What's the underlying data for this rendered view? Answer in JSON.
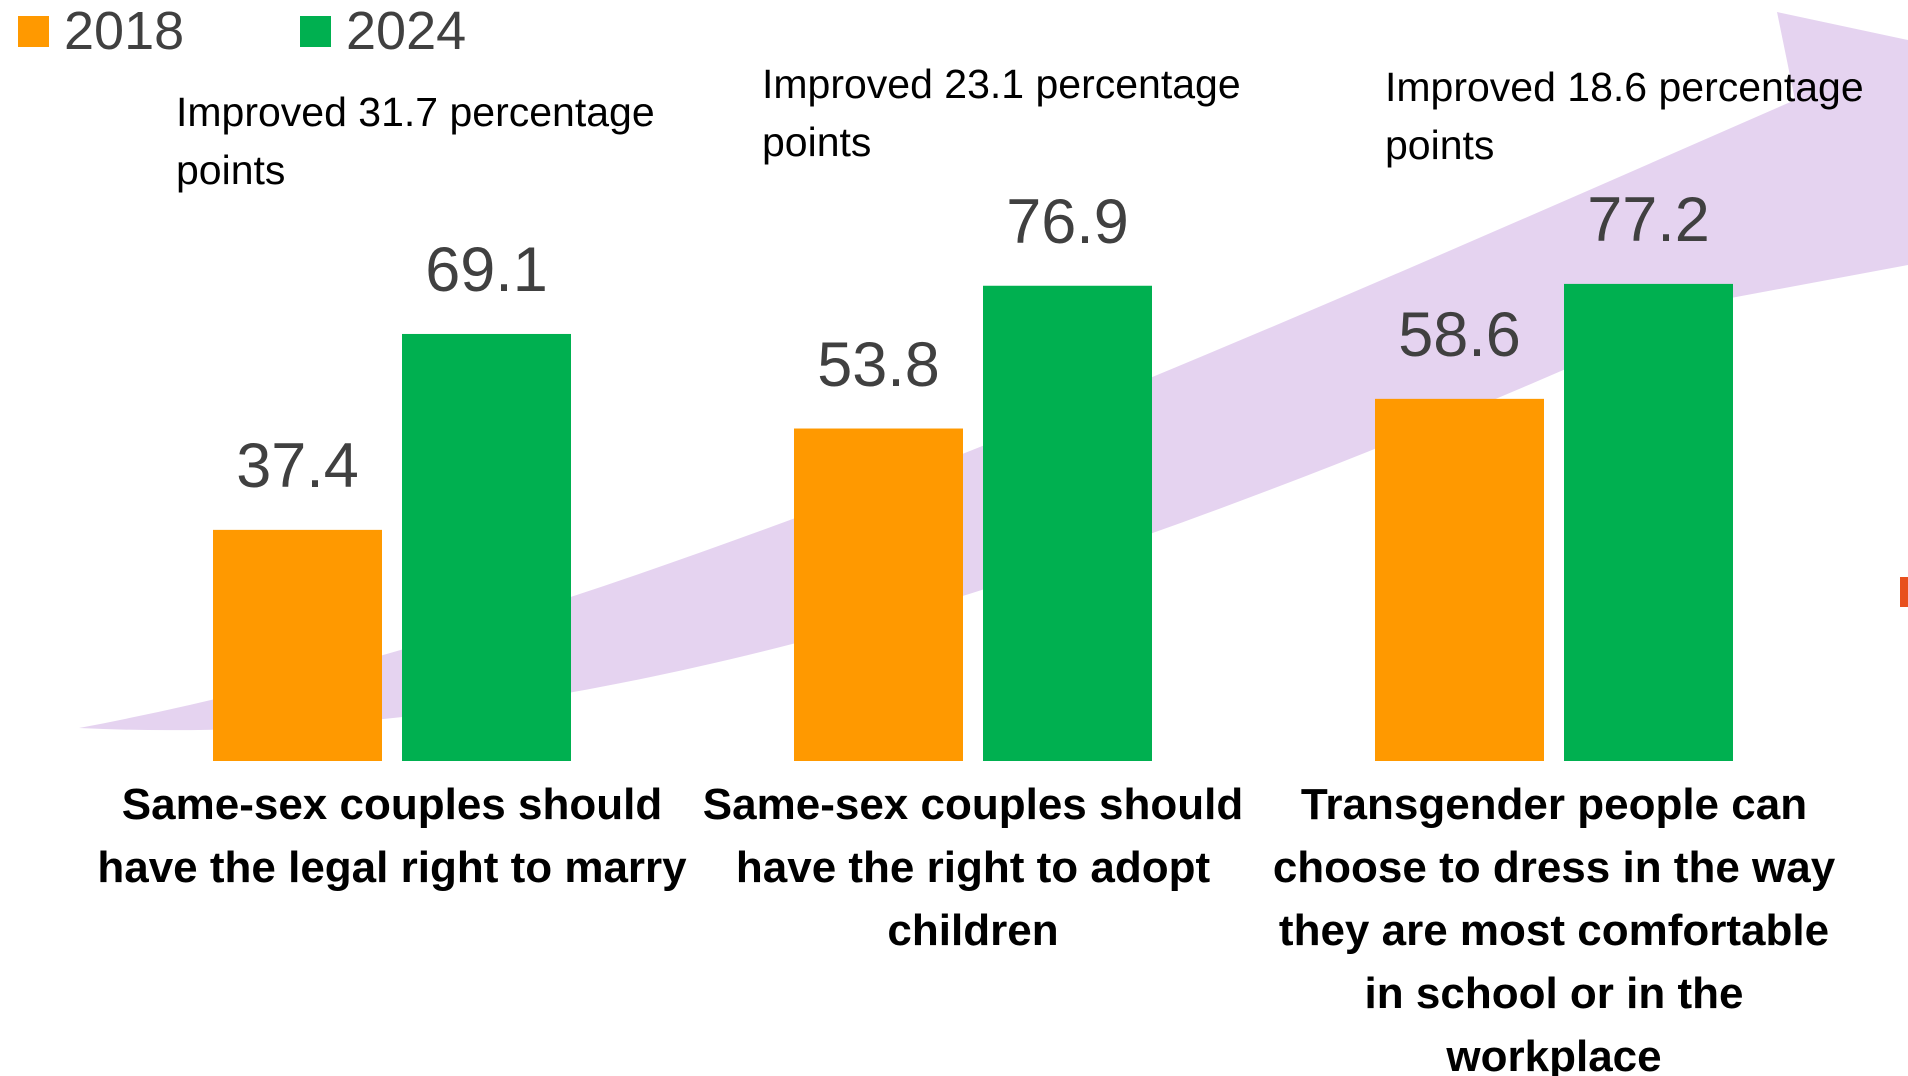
{
  "chart_data": {
    "type": "bar",
    "categories": [
      "Same-sex couples should have the legal right to marry",
      "Same-sex couples should have the right to adopt children",
      "Transgender people can choose to dress in the way they are most comfortable in school or in the workplace"
    ],
    "series": [
      {
        "name": "2018",
        "color": "#ff9900",
        "values": [
          37.4,
          53.8,
          58.6
        ]
      },
      {
        "name": "2024",
        "color": "#00b050",
        "values": [
          69.1,
          76.9,
          77.2
        ]
      }
    ],
    "annotations": [
      "Improved 31.7 percentage points",
      "Improved 23.1 percentage points",
      "Improved 18.6 percentage points"
    ],
    "legend": "top-left"
  }
}
